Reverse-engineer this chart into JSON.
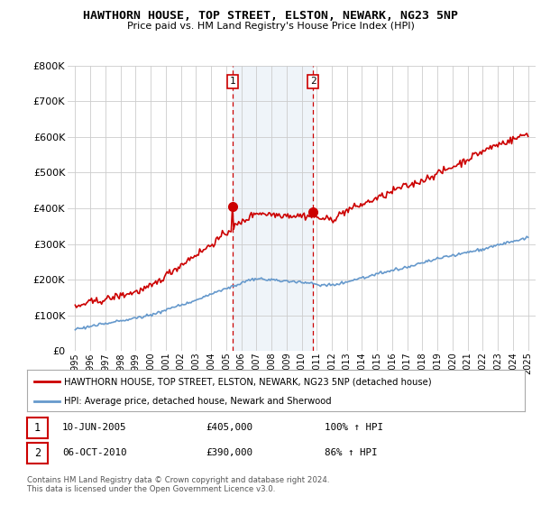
{
  "title": "HAWTHORN HOUSE, TOP STREET, ELSTON, NEWARK, NG23 5NP",
  "subtitle": "Price paid vs. HM Land Registry's House Price Index (HPI)",
  "legend_line1": "HAWTHORN HOUSE, TOP STREET, ELSTON, NEWARK, NG23 5NP (detached house)",
  "legend_line2": "HPI: Average price, detached house, Newark and Sherwood",
  "table_row1": [
    "1",
    "10-JUN-2005",
    "£405,000",
    "100% ↑ HPI"
  ],
  "table_row2": [
    "2",
    "06-OCT-2010",
    "£390,000",
    "86% ↑ HPI"
  ],
  "footnote": "Contains HM Land Registry data © Crown copyright and database right 2024.\nThis data is licensed under the Open Government Licence v3.0.",
  "sale1_date": 2005.44,
  "sale1_price": 405000,
  "sale2_date": 2010.76,
  "sale2_price": 390000,
  "vline1": 2005.44,
  "vline2": 2010.76,
  "ylim": [
    0,
    800000
  ],
  "xlim_start": 1995,
  "xlim_end": 2025,
  "red_color": "#cc0000",
  "blue_color": "#6699cc",
  "vline_color": "#cc0000",
  "background_color": "#ffffff",
  "grid_color": "#cccccc",
  "box_border_color": "#cc0000"
}
